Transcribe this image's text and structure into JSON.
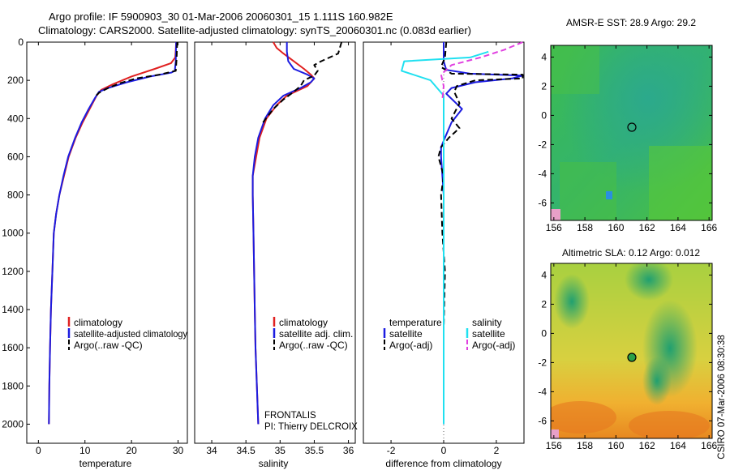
{
  "header": {
    "line1": "Argo profile: IF 5900903_30 01-Mar-2006 20060301_15 1.111S 160.982E",
    "line2": "Climatology: CARS2000. Satellite-adjusted climatology: synTS_20060301.nc (0.083d earlier)"
  },
  "colors": {
    "climatology": "#e02020",
    "satellite": "#1c1ce0",
    "argo": "#000000",
    "satellite_salinity": "#20e0f0",
    "argo_salinity": "#e040e0"
  },
  "chart_data": [
    {
      "type": "line",
      "xlabel": "temperature",
      "ylabel": "",
      "xlim": [
        -2.5,
        32
      ],
      "ylim": [
        2100,
        0
      ],
      "xticks": [
        0,
        10,
        20,
        30
      ],
      "yticks": [
        0,
        200,
        400,
        600,
        800,
        1000,
        1200,
        1400,
        1600,
        1800,
        2000
      ],
      "legend": [
        "climatology",
        "satellite-adjusted climatology",
        "Argo(..raw -QC)"
      ],
      "legend_position": "bottom-right",
      "series": [
        {
          "name": "climatology",
          "color": "#e02020",
          "dash": false,
          "x": [
            29.6,
            29.4,
            28.5,
            25,
            20,
            16,
            13.5,
            12.5,
            11,
            9.5,
            8,
            6.5,
            5.5,
            4.5,
            3.8,
            3.3,
            3.0,
            2.7,
            2.5,
            2.35,
            2.25
          ],
          "y": [
            0,
            80,
            110,
            140,
            180,
            220,
            250,
            280,
            350,
            420,
            500,
            600,
            700,
            800,
            900,
            1000,
            1200,
            1400,
            1600,
            1800,
            2000
          ]
        },
        {
          "name": "satellite-adjusted climatology",
          "color": "#1c1ce0",
          "dash": false,
          "x": [
            29.6,
            29.5,
            29.3,
            28.5,
            24,
            19,
            15,
            13,
            12.2,
            10.8,
            9.3,
            7.9,
            6.4,
            5.4,
            4.5,
            3.8,
            3.3,
            3.0,
            2.7,
            2.5,
            2.35,
            2.25
          ],
          "y": [
            0,
            100,
            150,
            160,
            180,
            210,
            240,
            260,
            290,
            350,
            420,
            500,
            600,
            700,
            800,
            900,
            1000,
            1200,
            1400,
            1600,
            1800,
            2000
          ]
        },
        {
          "name": "Argo(..raw -QC)",
          "color": "#000000",
          "dash": true,
          "x": [
            29.8,
            29.7,
            29.5,
            26,
            21,
            17.5,
            15,
            13,
            12
          ],
          "y": [
            0,
            80,
            150,
            170,
            190,
            215,
            240,
            265,
            290
          ]
        }
      ]
    },
    {
      "type": "line",
      "xlabel": "salinity",
      "ylabel": "",
      "xlim": [
        33.75,
        36.1
      ],
      "ylim": [
        2100,
        0
      ],
      "xticks": [
        34,
        34.5,
        35,
        35.5,
        36
      ],
      "legend": [
        "climatology",
        "satellite adj. clim.",
        "Argo(..raw -QC)"
      ],
      "legend_position": "bottom-right",
      "annotation": [
        "FRONTALIS",
        "PI: Thierry DELCROIX"
      ],
      "series": [
        {
          "name": "climatology",
          "color": "#e02020",
          "dash": false,
          "x": [
            34.9,
            34.95,
            35.05,
            35.2,
            35.35,
            35.45,
            35.5,
            35.4,
            35.1,
            34.95,
            34.8,
            34.7,
            34.65,
            34.6,
            34.6,
            34.61,
            34.62,
            34.63,
            34.64,
            34.66,
            34.68
          ],
          "y": [
            0,
            30,
            60,
            100,
            140,
            170,
            190,
            230,
            280,
            330,
            400,
            500,
            600,
            700,
            800,
            1000,
            1200,
            1400,
            1600,
            1800,
            2000
          ]
        },
        {
          "name": "satellite adj. clim.",
          "color": "#1c1ce0",
          "dash": false,
          "x": [
            35.1,
            35.1,
            35.12,
            35.2,
            35.4,
            35.5,
            35.45,
            35.3,
            35.05,
            34.9,
            34.78,
            34.68,
            34.63,
            34.6,
            34.6,
            34.61,
            34.62,
            34.63,
            34.64,
            34.66,
            34.68
          ],
          "y": [
            0,
            50,
            100,
            140,
            170,
            190,
            210,
            240,
            280,
            330,
            400,
            500,
            600,
            700,
            800,
            1000,
            1200,
            1400,
            1600,
            1800,
            2000
          ]
        },
        {
          "name": "Argo(..raw -QC)",
          "color": "#000000",
          "dash": true,
          "x": [
            35.9,
            35.85,
            35.6,
            35.5,
            35.55,
            35.5,
            35.35,
            35.3,
            35.2,
            35.05,
            34.9,
            34.75
          ],
          "y": [
            0,
            60,
            100,
            120,
            150,
            175,
            200,
            230,
            260,
            300,
            350,
            420
          ]
        }
      ]
    },
    {
      "type": "line",
      "xlabel": "difference from climatology",
      "ylabel": "",
      "xlim": [
        -3.05,
        3.05
      ],
      "ylim": [
        2100,
        0
      ],
      "xticks": [
        -2,
        0,
        2
      ],
      "legend": [
        "temperature",
        "satellite",
        "Argo(-adj)",
        "salinity",
        "satellite",
        "Argo(-adj)"
      ],
      "legend_position": "bottom",
      "series": [
        {
          "name": "satellite",
          "color": "#1c1ce0",
          "dash": false,
          "x": [
            0,
            0,
            0.1,
            1.0,
            3.0,
            2.6,
            1.2,
            0.3,
            0.1,
            0.7,
            0.3,
            0.05,
            -0.1,
            -0.1,
            -0.05,
            0,
            0,
            0,
            0,
            0,
            0,
            0
          ],
          "y": [
            0,
            100,
            145,
            165,
            175,
            190,
            210,
            240,
            270,
            350,
            420,
            500,
            550,
            600,
            700,
            800,
            1000,
            1200,
            1400,
            1600,
            1800,
            2000
          ]
        },
        {
          "name": "Argo(-adj)",
          "color": "#000000",
          "dash": true,
          "x": [
            0.1,
            0.05,
            -0.1,
            0.3,
            3.0,
            3.0,
            1.2,
            0.5,
            0.4,
            0.6,
            0.3,
            0.6,
            0.2,
            -0.1,
            -0.2,
            0.0,
            -0.1,
            -0.05,
            0.05,
            0.0
          ],
          "y": [
            0,
            80,
            130,
            165,
            170,
            190,
            200,
            230,
            260,
            320,
            400,
            450,
            500,
            550,
            600,
            700,
            800,
            1000,
            1200,
            1500
          ]
        },
        {
          "name": "satellite",
          "color": "#20e0f0",
          "dash": false,
          "x": [
            1.7,
            1.0,
            -1.5,
            -1.6,
            -0.5,
            0.0,
            0.0,
            0.0,
            0.0,
            0.0,
            0.0,
            0.0,
            0.0,
            0.0
          ],
          "y": [
            50,
            80,
            100,
            150,
            200,
            280,
            400,
            600,
            800,
            1000,
            1200,
            1400,
            1600,
            2000
          ]
        },
        {
          "name": "Argo(-adj)",
          "color": "#e040e0",
          "dash": true,
          "x": [
            3.0,
            2.3,
            1.4,
            0.3,
            -0.1,
            0.0,
            -0.05
          ],
          "y": [
            0,
            40,
            80,
            120,
            170,
            230,
            300
          ]
        }
      ]
    },
    {
      "type": "heatmap",
      "title": "AMSR-E SST: 28.9 Argo: 29.2",
      "xlim": [
        155.8,
        166.2
      ],
      "ylim": [
        -7.2,
        4.8
      ],
      "xticks": [
        156,
        158,
        160,
        162,
        164,
        166
      ],
      "yticks": [
        -6,
        -4,
        -2,
        0,
        2,
        4
      ],
      "marker": {
        "lon": 160.982,
        "lat": -1.111
      }
    },
    {
      "type": "heatmap",
      "title": "Altimetric SLA: 0.12 Argo: 0.012",
      "xlim": [
        155.8,
        166.2
      ],
      "ylim": [
        -7.2,
        4.8
      ],
      "xticks": [
        156,
        158,
        160,
        162,
        164,
        166
      ],
      "yticks": [
        -6,
        -4,
        -2,
        0,
        2,
        4
      ],
      "marker": {
        "lon": 160.982,
        "lat": -1.111
      },
      "side_label": "CSIRO 07-Mar-2006 08:30:38"
    }
  ]
}
